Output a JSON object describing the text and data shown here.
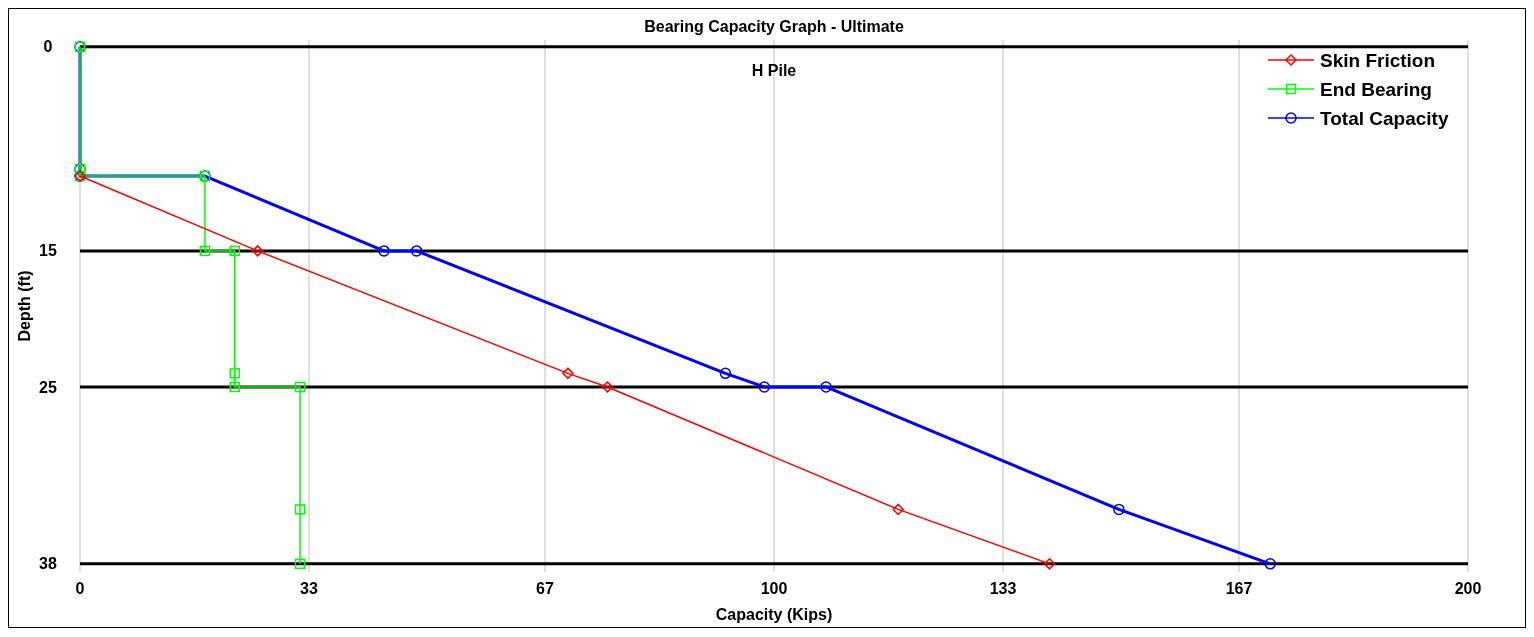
{
  "chart_data": {
    "type": "line",
    "title": "Bearing Capacity Graph - Ultimate",
    "subtitle": "H Pile",
    "xlabel": "Capacity (Kips)",
    "ylabel": "Depth (ft)",
    "xlim": [
      0,
      200
    ],
    "xticks": [
      0,
      33,
      67,
      100,
      133,
      167,
      200
    ],
    "ylim": [
      38.6,
      -0.5
    ],
    "yticks": [
      0,
      15,
      25,
      38
    ],
    "grid": true,
    "legend": "top right",
    "series": [
      {
        "name": "Skin Friction",
        "color": "#ff0000",
        "marker": "diamond",
        "x": [
          0,
          25.6,
          70.3,
          76,
          117.9,
          139.7
        ],
        "values": [
          9.5,
          15,
          24,
          25,
          34,
          38
        ]
      },
      {
        "name": "End Bearing",
        "color": "#00ff00",
        "marker": "square",
        "x": [
          0,
          0,
          0,
          18,
          18,
          22.3,
          22.3,
          22.3,
          31.7,
          31.7,
          31.7
        ],
        "values": [
          0,
          9,
          9.5,
          9.5,
          15,
          15,
          24,
          25,
          25,
          34,
          38
        ]
      },
      {
        "name": "Total Capacity",
        "color": "#0000ff",
        "marker": "circle",
        "x": [
          0,
          0,
          0,
          18,
          43.8,
          48.5,
          93,
          98.6,
          107.5,
          149.7,
          171.5
        ],
        "values": [
          0,
          9,
          9.5,
          9.5,
          15,
          15,
          24,
          25,
          25,
          34,
          38
        ]
      }
    ]
  }
}
